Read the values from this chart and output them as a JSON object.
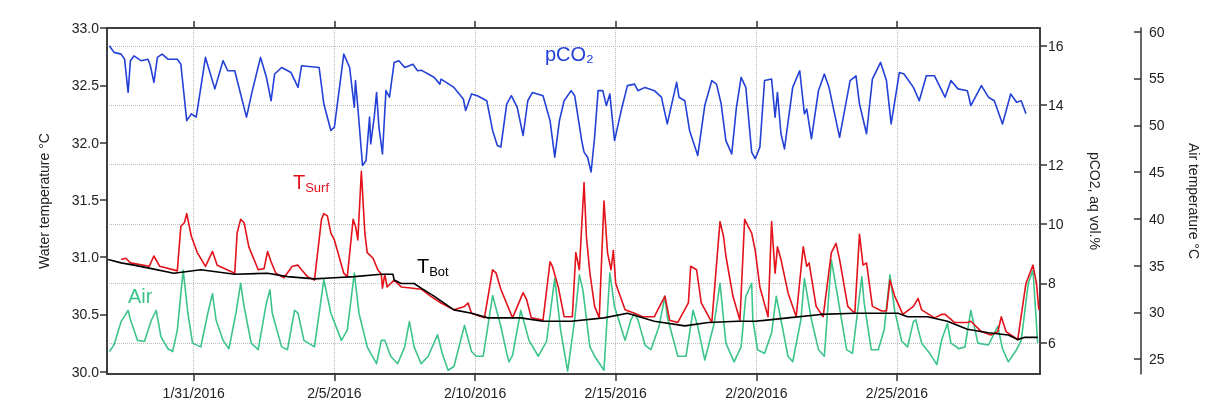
{
  "chart_data": {
    "type": "line",
    "ylabel": "Water temperature °C",
    "y2label": "pCO2, aq vol.%",
    "y3label": "Air temperature °C",
    "xlim": [
      "2016-01-27T22:00",
      "2016-03-01T02:00"
    ],
    "xticks": [
      {
        "value": "2016-01-31",
        "label": "1/31/2016"
      },
      {
        "value": "2016-02-05",
        "label": "2/5/2016"
      },
      {
        "value": "2016-02-10",
        "label": "2/10/2016"
      },
      {
        "value": "2016-02-15",
        "label": "2/15/2016"
      },
      {
        "value": "2016-02-20",
        "label": "2/20/2016"
      },
      {
        "value": "2016-02-25",
        "label": "2/25/2016"
      }
    ],
    "ylim": [
      29.98,
      33.0
    ],
    "yticks": [
      {
        "value": 30,
        "label": "30.0"
      },
      30.5,
      {
        "value": 31,
        "label": "31.0"
      },
      31.5,
      {
        "value": 32,
        "label": "32.0"
      },
      32.5,
      {
        "value": 33,
        "label": "33.0"
      }
    ],
    "y2lim": [
      4.95,
      16.6
    ],
    "y2ticks": [
      6,
      8,
      10,
      12,
      14,
      16
    ],
    "y3lim": [
      23.4,
      60.4
    ],
    "y3ticks": [
      25,
      30,
      35,
      40,
      45,
      50,
      55,
      60
    ],
    "grid": true,
    "series": [
      {
        "name": "pCO₂",
        "color": "#2341d6",
        "axis": "y2",
        "x": [
          "2016-01-28T00:00",
          "2016-01-28T04:00",
          "2016-01-28T10:00",
          "2016-01-28T13:00",
          "2016-01-28T16:00",
          "2016-01-28T18:00",
          "2016-01-28T21:00",
          "2016-01-29T03:00",
          "2016-01-29T09:00",
          "2016-01-29T11:00",
          "2016-01-29T14:00",
          "2016-01-29T17:00",
          "2016-01-29T21:00",
          "2016-01-30T02:00",
          "2016-01-30T10:00",
          "2016-01-30T13:00",
          "2016-01-30T18:00",
          "2016-01-30T22:00",
          "2016-01-31T02:00",
          "2016-01-31T03:00",
          "2016-01-31T10:00",
          "2016-01-31T18:00",
          "2016-02-01T01:00",
          "2016-02-01T05:00",
          "2016-02-01T11:00",
          "2016-02-01T21:00",
          "2016-02-02T02:00",
          "2016-02-02T09:00",
          "2016-02-02T14:00",
          "2016-02-02T18:00",
          "2016-02-02T21:00",
          "2016-02-03T03:00",
          "2016-02-03T11:00",
          "2016-02-03T17:00",
          "2016-02-03T20:00",
          "2016-02-04T11:00",
          "2016-02-04T15:00",
          "2016-02-04T21:00",
          "2016-02-05T00:00",
          "2016-02-05T08:00",
          "2016-02-05T13:00",
          "2016-02-05T17:00",
          "2016-02-05T18:00",
          "2016-02-05T20:00",
          "2016-02-06T00:00",
          "2016-02-06T03:00",
          "2016-02-06T06:00",
          "2016-02-06T07:00",
          "2016-02-06T10:00",
          "2016-02-06T12:00",
          "2016-02-06T14:00",
          "2016-02-06T17:00",
          "2016-02-06T20:00",
          "2016-02-06T23:00",
          "2016-02-07T03:00",
          "2016-02-07T07:00",
          "2016-02-07T12:00",
          "2016-02-07T19:00",
          "2016-02-07T23:00",
          "2016-02-08T02:00",
          "2016-02-08T13:00",
          "2016-02-08T18:00",
          "2016-02-08T19:00",
          "2016-02-09T06:00",
          "2016-02-09T14:00",
          "2016-02-09T16:00",
          "2016-02-09T21:00",
          "2016-02-10T02:00",
          "2016-02-10T10:00",
          "2016-02-10T15:00",
          "2016-02-10T19:00",
          "2016-02-10T22:00",
          "2016-02-11T03:00",
          "2016-02-11T07:00",
          "2016-02-11T12:00",
          "2016-02-11T17:00",
          "2016-02-11T21:00",
          "2016-02-12T01:00",
          "2016-02-12T10:00",
          "2016-02-12T16:00",
          "2016-02-12T20:00",
          "2016-02-13T00:00",
          "2016-02-13T04:00",
          "2016-02-13T10:00",
          "2016-02-13T13:00",
          "2016-02-13T19:00",
          "2016-02-13T21:00",
          "2016-02-14T00:00",
          "2016-02-14T03:00",
          "2016-02-14T06:00",
          "2016-02-14T09:00",
          "2016-02-14T13:00",
          "2016-02-14T16:00",
          "2016-02-14T19:00",
          "2016-02-14T23:00",
          "2016-02-15T05:00",
          "2016-02-15T10:00",
          "2016-02-15T16:00",
          "2016-02-15T19:00",
          "2016-02-16T01:00",
          "2016-02-16T09:00",
          "2016-02-16T15:00",
          "2016-02-16T20:00",
          "2016-02-17T04:00",
          "2016-02-17T06:00",
          "2016-02-17T11:00",
          "2016-02-17T15:00",
          "2016-02-17T22:00",
          "2016-02-18T04:00",
          "2016-02-18T10:00",
          "2016-02-18T14:00",
          "2016-02-18T18:00",
          "2016-02-18T22:00",
          "2016-02-19T03:00",
          "2016-02-19T07:00",
          "2016-02-19T11:00",
          "2016-02-19T15:00",
          "2016-02-19T20:00",
          "2016-02-19T23:00",
          "2016-02-20T03:00",
          "2016-02-20T07:00",
          "2016-02-20T13:00",
          "2016-02-20T16:00",
          "2016-02-20T18:00",
          "2016-02-20T21:00",
          "2016-02-21T00:00",
          "2016-02-21T07:00",
          "2016-02-21T13:00",
          "2016-02-21T17:00",
          "2016-02-21T19:00",
          "2016-02-21T23:00",
          "2016-02-22T05:00",
          "2016-02-22T10:00",
          "2016-02-22T14:00",
          "2016-02-22T23:00",
          "2016-02-23T08:00",
          "2016-02-23T13:00",
          "2016-02-23T16:00",
          "2016-02-23T22:00",
          "2016-02-24T03:00",
          "2016-02-24T10:00",
          "2016-02-24T15:00",
          "2016-02-24T19:00",
          "2016-02-25T02:00",
          "2016-02-25T06:00",
          "2016-02-25T14:00",
          "2016-02-25T19:00",
          "2016-02-26T01:00",
          "2016-02-26T08:00",
          "2016-02-26T17:00",
          "2016-02-26T22:00",
          "2016-02-27T04:00",
          "2016-02-27T12:00",
          "2016-02-27T15:00",
          "2016-02-28T00:00",
          "2016-02-28T06:00",
          "2016-02-28T11:00",
          "2016-02-28T18:00",
          "2016-02-29T01:00",
          "2016-02-29T06:00",
          "2016-02-29T10:00",
          "2016-02-29T14:00"
        ],
        "values": [
          16.0,
          15.78,
          15.72,
          15.55,
          14.43,
          15.5,
          15.66,
          15.5,
          15.55,
          15.33,
          14.77,
          15.61,
          15.72,
          15.55,
          15.55,
          15.38,
          13.48,
          13.71,
          13.6,
          13.82,
          15.61,
          14.55,
          15.5,
          15.16,
          15.16,
          13.6,
          14.49,
          15.61,
          14.94,
          14.15,
          15.05,
          15.27,
          15.1,
          14.6,
          15.33,
          15.27,
          14.04,
          13.15,
          13.26,
          15.72,
          15.27,
          13.93,
          14.83,
          13.93,
          11.97,
          12.14,
          13.6,
          12.7,
          13.6,
          14.43,
          13.26,
          12.36,
          14.49,
          14.27,
          15.44,
          15.5,
          15.27,
          15.38,
          15.16,
          15.18,
          14.94,
          14.71,
          14.88,
          14.6,
          14.21,
          13.82,
          14.38,
          14.32,
          14.15,
          13.15,
          12.64,
          12.59,
          14.04,
          14.32,
          13.93,
          12.98,
          14.15,
          14.43,
          14.32,
          13.48,
          12.25,
          13.48,
          14.15,
          14.49,
          14.32,
          12.81,
          12.42,
          12.25,
          11.75,
          12.92,
          14.49,
          14.49,
          13.99,
          14.38,
          12.81,
          13.87,
          14.66,
          14.71,
          14.49,
          14.6,
          14.49,
          14.27,
          13.37,
          14.77,
          14.27,
          14.15,
          13.15,
          12.31,
          13.99,
          14.83,
          14.71,
          14.04,
          12.81,
          12.36,
          13.93,
          14.94,
          14.6,
          12.42,
          12.2,
          12.59,
          14.83,
          14.88,
          13.6,
          14.43,
          13.04,
          12.53,
          14.6,
          15.16,
          13.71,
          13.87,
          12.87,
          14.49,
          15.05,
          14.6,
          12.92,
          14.83,
          14.99,
          14.04,
          13.04,
          14.88,
          15.44,
          14.83,
          13.37,
          15.1,
          15.05,
          14.6,
          14.15,
          14.99,
          14.99,
          14.27,
          14.83,
          14.55,
          14.49,
          13.99,
          14.66,
          14.27,
          14.15,
          13.37,
          14.38,
          14.1,
          14.15,
          13.71
        ]
      },
      {
        "name": "Air",
        "color": "#3cc48a",
        "axis": "y3",
        "x": [
          "2016-01-28T00:00",
          "2016-01-28T04:00",
          "2016-01-28T10:00",
          "2016-01-28T16:00",
          "2016-01-28T18:00",
          "2016-01-29T00:00",
          "2016-01-29T06:00",
          "2016-01-29T12:00",
          "2016-01-29T16:00",
          "2016-01-29T20:00",
          "2016-01-30T02:00",
          "2016-01-30T06:00",
          "2016-01-30T10:00",
          "2016-01-30T15:00",
          "2016-01-30T19:00",
          "2016-01-30T23:00",
          "2016-01-31T06:00",
          "2016-01-31T12:00",
          "2016-01-31T16:00",
          "2016-01-31T19:00",
          "2016-02-01T01:00",
          "2016-02-01T06:00",
          "2016-02-01T12:00",
          "2016-02-01T16:00",
          "2016-02-01T19:00",
          "2016-02-02T01:00",
          "2016-02-02T07:00",
          "2016-02-02T14:00",
          "2016-02-02T17:00",
          "2016-02-02T19:00",
          "2016-02-03T03:00",
          "2016-02-03T08:00",
          "2016-02-03T14:00",
          "2016-02-03T17:00",
          "2016-02-03T22:00",
          "2016-02-04T07:00",
          "2016-02-04T15:00",
          "2016-02-04T21:00",
          "2016-02-05T06:00",
          "2016-02-05T11:00",
          "2016-02-05T17:00",
          "2016-02-05T21:00",
          "2016-02-06T04:00",
          "2016-02-06T07:00",
          "2016-02-06T12:00",
          "2016-02-06T16:00",
          "2016-02-06T19:00",
          "2016-02-07T00:00",
          "2016-02-07T06:00",
          "2016-02-07T12:00",
          "2016-02-07T16:00",
          "2016-02-07T20:00",
          "2016-02-08T02:00",
          "2016-02-08T08:00",
          "2016-02-08T16:00",
          "2016-02-08T20:00",
          "2016-02-09T01:00",
          "2016-02-09T06:00",
          "2016-02-09T15:00",
          "2016-02-09T21:00",
          "2016-02-10T01:00",
          "2016-02-10T07:00",
          "2016-02-10T15:00",
          "2016-02-10T22:00",
          "2016-02-11T03:00",
          "2016-02-11T05:00",
          "2016-02-11T08:00",
          "2016-02-11T15:00",
          "2016-02-11T22:00",
          "2016-02-12T06:00",
          "2016-02-12T13:00",
          "2016-02-12T20:00",
          "2016-02-13T01:00",
          "2016-02-13T07:00",
          "2016-02-13T13:00",
          "2016-02-13T17:00",
          "2016-02-13T20:00",
          "2016-02-14T02:00",
          "2016-02-14T06:00",
          "2016-02-14T14:00",
          "2016-02-14T19:00",
          "2016-02-14T23:00",
          "2016-02-15T08:00",
          "2016-02-15T13:00",
          "2016-02-15T16:00",
          "2016-02-15T19:00",
          "2016-02-16T01:00",
          "2016-02-16T06:00",
          "2016-02-16T13:00",
          "2016-02-16T18:00",
          "2016-02-16T20:00",
          "2016-02-17T05:00",
          "2016-02-17T12:00",
          "2016-02-17T18:00",
          "2016-02-17T22:00",
          "2016-02-18T04:00",
          "2016-02-18T12:00",
          "2016-02-18T17:00",
          "2016-02-18T22:00",
          "2016-02-19T05:00",
          "2016-02-19T11:00",
          "2016-02-19T15:00",
          "2016-02-19T20:00",
          "2016-02-19T21:00",
          "2016-02-20T01:00",
          "2016-02-20T07:00",
          "2016-02-20T13:00",
          "2016-02-20T17:00",
          "2016-02-20T21:00",
          "2016-02-21T03:00",
          "2016-02-21T07:00",
          "2016-02-21T14:00",
          "2016-02-21T17:00",
          "2016-02-21T23:00",
          "2016-02-22T05:00",
          "2016-02-22T10:00",
          "2016-02-22T16:00",
          "2016-02-22T20:00",
          "2016-02-23T05:00",
          "2016-02-23T10:00",
          "2016-02-23T18:00",
          "2016-02-23T20:00",
          "2016-02-24T02:00",
          "2016-02-24T08:00",
          "2016-02-24T13:00",
          "2016-02-24T18:00",
          "2016-02-24T22:00",
          "2016-02-25T04:00",
          "2016-02-25T09:00",
          "2016-02-25T14:00",
          "2016-02-25T16:00",
          "2016-02-25T21:00",
          "2016-02-26T04:00",
          "2016-02-26T10:00",
          "2016-02-26T14:00",
          "2016-02-26T19:00",
          "2016-02-26T22:00",
          "2016-02-27T05:00",
          "2016-02-27T10:00",
          "2016-02-27T15:00",
          "2016-02-27T21:00",
          "2016-02-28T06:00",
          "2016-02-28T14:00",
          "2016-02-28T18:00",
          "2016-02-28T23:00",
          "2016-02-29T06:00",
          "2016-02-29T10:00",
          "2016-02-29T16:00",
          "2016-02-29T20:00",
          "2016-03-01T00:00"
        ],
        "values": [
          25.8,
          26.5,
          29.0,
          30.2,
          29.2,
          27.0,
          26.9,
          29.2,
          30.2,
          27.4,
          26.1,
          25.8,
          28.1,
          34.5,
          29.9,
          26.7,
          26.3,
          29.9,
          32.0,
          29.2,
          27.0,
          26.1,
          29.9,
          33.1,
          30.6,
          26.7,
          26.0,
          31.0,
          32.4,
          29.9,
          26.3,
          26.0,
          30.2,
          29.9,
          27.0,
          26.3,
          33.5,
          29.9,
          27.0,
          28.1,
          34.2,
          29.9,
          26.3,
          25.6,
          24.5,
          27.0,
          27.0,
          25.3,
          24.5,
          26.3,
          29.0,
          26.3,
          24.5,
          25.3,
          27.6,
          25.6,
          23.8,
          24.2,
          28.6,
          25.8,
          25.3,
          25.3,
          31.8,
          28.5,
          25.6,
          24.7,
          25.4,
          30.2,
          27.0,
          25.3,
          26.9,
          33.6,
          28.1,
          23.7,
          29.2,
          34.0,
          32.4,
          26.3,
          25.3,
          23.8,
          34.2,
          30.6,
          27.0,
          29.2,
          29.9,
          29.2,
          26.5,
          26.0,
          28.5,
          31.7,
          29.5,
          25.3,
          25.3,
          30.2,
          28.5,
          24.9,
          28.8,
          33.1,
          26.7,
          24.7,
          26.3,
          31.7,
          33.1,
          29.2,
          26.0,
          25.6,
          27.8,
          31.7,
          29.2,
          25.3,
          24.7,
          29.2,
          33.6,
          29.2,
          26.0,
          25.3,
          35.6,
          32.7,
          26.0,
          25.6,
          33.8,
          31.0,
          26.0,
          26.0,
          28.1,
          34.0,
          30.2,
          26.9,
          26.3,
          29.0,
          29.2,
          26.7,
          25.6,
          24.4,
          27.0,
          28.8,
          26.7,
          26.1,
          26.3,
          30.2,
          26.7,
          26.5,
          28.5,
          26.1,
          24.7,
          26.0,
          27.0,
          33.1,
          34.5,
          26.7
        ]
      },
      {
        "name": "T$_{Surf}$",
        "color": "#e3121b",
        "x": [
          "2016-01-28T10:00",
          "2016-01-28T14:00",
          "2016-01-28T18:00",
          "2016-01-29T10:00",
          "2016-01-29T14:00",
          "2016-01-29T19:00",
          "2016-01-30T10:00",
          "2016-01-30T13:00",
          "2016-01-30T16:00",
          "2016-01-30T18:00",
          "2016-01-30T22:00",
          "2016-01-31T03:00",
          "2016-01-31T10:00",
          "2016-01-31T16:00",
          "2016-01-31T20:00",
          "2016-02-01T11:00",
          "2016-02-01T13:00",
          "2016-02-01T16:00",
          "2016-02-01T19:00",
          "2016-02-01T23:00",
          "2016-02-02T07:00",
          "2016-02-02T12:00",
          "2016-02-02T15:00",
          "2016-02-02T18:00",
          "2016-02-02T22:00",
          "2016-02-03T05:00",
          "2016-02-03T12:00",
          "2016-02-03T17:00",
          "2016-02-03T20:00",
          "2016-02-04T01:00",
          "2016-02-04T07:00",
          "2016-02-04T13:00",
          "2016-02-04T15:00",
          "2016-02-04T18:00",
          "2016-02-04T21:00",
          "2016-02-05T00:00",
          "2016-02-05T08:00",
          "2016-02-05T11:00",
          "2016-02-05T16:00",
          "2016-02-05T18:00",
          "2016-02-05T20:00",
          "2016-02-05T23:00",
          "2016-02-06T02:00",
          "2016-02-06T04:00",
          "2016-02-06T09:00",
          "2016-02-06T13:00",
          "2016-02-06T16:00",
          "2016-02-06T17:00",
          "2016-02-06T19:00",
          "2016-02-06T21:00",
          "2016-02-07T00:00",
          "2016-02-07T03:00",
          "2016-02-07T09:00",
          "2016-02-07T17:00",
          "2016-02-08T02:00",
          "2016-02-08T10:00",
          "2016-02-08T19:00",
          "2016-02-09T06:00",
          "2016-02-09T15:00",
          "2016-02-09T18:00",
          "2016-02-09T21:00",
          "2016-02-10T08:00",
          "2016-02-10T15:00",
          "2016-02-10T18:00",
          "2016-02-10T22:00",
          "2016-02-11T08:00",
          "2016-02-11T17:00",
          "2016-02-11T20:00",
          "2016-02-12T00:00",
          "2016-02-12T10:00",
          "2016-02-12T16:00",
          "2016-02-12T18:00",
          "2016-02-12T23:00",
          "2016-02-13T04:00",
          "2016-02-13T11:00",
          "2016-02-13T14:00",
          "2016-02-13T17:00",
          "2016-02-13T21:00",
          "2016-02-13T23:00",
          "2016-02-14T02:00",
          "2016-02-14T06:00",
          "2016-02-14T10:00",
          "2016-02-14T14:00",
          "2016-02-14T17:00",
          "2016-02-14T20:00",
          "2016-02-14T22:00",
          "2016-02-15T00:00",
          "2016-02-15T08:00",
          "2016-02-15T16:00",
          "2016-02-15T23:00",
          "2016-02-16T09:00",
          "2016-02-16T18:00",
          "2016-02-16T22:00",
          "2016-02-17T05:00",
          "2016-02-17T14:00",
          "2016-02-17T16:00",
          "2016-02-17T21:00",
          "2016-02-18T01:00",
          "2016-02-18T10:00",
          "2016-02-18T17:00",
          "2016-02-18T20:00",
          "2016-02-18T22:00",
          "2016-02-19T04:00",
          "2016-02-19T10:00",
          "2016-02-19T14:00",
          "2016-02-19T20:00",
          "2016-02-19T23:00",
          "2016-02-20T03:00",
          "2016-02-20T10:00",
          "2016-02-20T13:00",
          "2016-02-20T16:00",
          "2016-02-20T18:00",
          "2016-02-20T21:00",
          "2016-02-21T03:00",
          "2016-02-21T10:00",
          "2016-02-21T16:00",
          "2016-02-21T19:00",
          "2016-02-21T21:00",
          "2016-02-22T03:00",
          "2016-02-22T09:00",
          "2016-02-22T16:00",
          "2016-02-22T20:00",
          "2016-02-22T23:00",
          "2016-02-23T06:00",
          "2016-02-23T12:00",
          "2016-02-23T16:00",
          "2016-02-23T19:00",
          "2016-02-23T22:00",
          "2016-02-24T03:00",
          "2016-02-24T11:00",
          "2016-02-24T15:00",
          "2016-02-24T18:00",
          "2016-02-24T22:00",
          "2016-02-25T05:00",
          "2016-02-25T14:00",
          "2016-02-25T18:00",
          "2016-02-25T21:00",
          "2016-02-26T08:00",
          "2016-02-26T14:00",
          "2016-02-26T17:00",
          "2016-02-27T01:00",
          "2016-02-27T12:00",
          "2016-02-27T15:00",
          "2016-02-28T00:00",
          "2016-02-28T08:00",
          "2016-02-28T14:00",
          "2016-02-28T17:00",
          "2016-02-28T21:00",
          "2016-02-29T07:00",
          "2016-02-29T14:00",
          "2016-02-29T20:00",
          "2016-02-29T23:00",
          "2016-03-01T01:00"
        ],
        "values": [
          30.98,
          30.99,
          30.95,
          30.92,
          31.01,
          30.92,
          30.88,
          31.27,
          31.3,
          31.38,
          31.18,
          31.04,
          30.92,
          31.05,
          30.93,
          30.86,
          31.21,
          31.33,
          31.3,
          31.09,
          30.89,
          30.9,
          31.05,
          30.96,
          30.86,
          30.82,
          30.92,
          30.93,
          30.89,
          30.83,
          30.8,
          31.33,
          31.38,
          31.36,
          31.21,
          31.15,
          30.86,
          30.83,
          31.33,
          31.27,
          31.15,
          31.75,
          31.21,
          31.04,
          30.99,
          30.89,
          30.85,
          30.73,
          30.85,
          30.74,
          30.77,
          30.8,
          30.74,
          30.73,
          30.72,
          30.66,
          30.6,
          30.54,
          30.57,
          30.6,
          30.51,
          30.47,
          30.89,
          30.86,
          30.72,
          30.47,
          30.69,
          30.63,
          30.47,
          30.45,
          30.96,
          30.92,
          30.74,
          30.48,
          30.48,
          31.04,
          30.89,
          31.65,
          31.18,
          30.86,
          30.57,
          30.47,
          31.49,
          31.04,
          30.89,
          31.06,
          30.77,
          30.54,
          30.51,
          30.48,
          30.48,
          30.66,
          30.45,
          30.43,
          30.6,
          30.92,
          30.89,
          30.6,
          30.43,
          31.31,
          31.18,
          31.01,
          30.66,
          30.45,
          31.33,
          31.21,
          31.06,
          30.74,
          30.48,
          31.31,
          30.86,
          31.09,
          30.98,
          30.69,
          30.48,
          31.09,
          30.92,
          30.95,
          30.57,
          30.48,
          31.04,
          31.12,
          30.98,
          30.57,
          30.51,
          31.2,
          30.93,
          30.95,
          30.57,
          30.53,
          30.53,
          30.8,
          30.66,
          30.5,
          30.57,
          30.64,
          30.54,
          30.47,
          30.5,
          30.5,
          30.43,
          30.43,
          30.44,
          30.35,
          30.32,
          30.35,
          30.48,
          30.35,
          30.28,
          30.77,
          30.93,
          30.77,
          30.54
        ]
      },
      {
        "name": "T$_{Bot}$",
        "color": "#000000",
        "x": [
          "2016-01-27T23:00",
          "2016-01-28T10:00",
          "2016-01-28T21:00",
          "2016-01-29T12:00",
          "2016-01-30T07:00",
          "2016-01-31T06:00",
          "2016-02-01T11:00",
          "2016-02-02T15:00",
          "2016-02-03T08:00",
          "2016-02-04T07:00",
          "2016-02-05T00:00",
          "2016-02-05T17:00",
          "2016-02-06T16:00",
          "2016-02-07T02:00",
          "2016-02-07T03:00",
          "2016-02-07T09:00",
          "2016-02-07T20:00",
          "2016-02-08T02:00",
          "2016-02-08T13:00",
          "2016-02-09T06:00",
          "2016-02-09T21:00",
          "2016-02-10T11:00",
          "2016-02-11T15:00",
          "2016-02-12T10:00",
          "2016-02-13T10:00",
          "2016-02-14T14:00",
          "2016-02-15T10:00",
          "2016-02-16T09:00",
          "2016-02-17T11:00",
          "2016-02-18T07:00",
          "2016-02-19T08:00",
          "2016-02-19T23:00",
          "2016-02-21T03:00",
          "2016-02-22T07:00",
          "2016-02-23T12:00",
          "2016-02-24T02:00",
          "2016-02-25T01:00",
          "2016-02-25T09:00",
          "2016-02-26T02:00",
          "2016-02-26T19:00",
          "2016-02-27T12:00",
          "2016-02-28T06:00",
          "2016-02-28T23:00",
          "2016-02-29T07:00",
          "2016-02-29T13:00",
          "2016-03-01T00:00"
        ],
        "values": [
          30.98,
          30.95,
          30.93,
          30.9,
          30.86,
          30.89,
          30.85,
          30.86,
          30.83,
          30.81,
          30.82,
          30.83,
          30.85,
          30.85,
          30.8,
          30.77,
          30.77,
          30.73,
          30.66,
          30.54,
          30.51,
          30.47,
          30.47,
          30.44,
          30.44,
          30.47,
          30.51,
          30.44,
          30.4,
          30.43,
          30.44,
          30.44,
          30.47,
          30.5,
          30.51,
          30.51,
          30.51,
          30.48,
          30.48,
          30.44,
          30.37,
          30.34,
          30.32,
          30.28,
          30.3,
          30.3
        ]
      }
    ]
  }
}
